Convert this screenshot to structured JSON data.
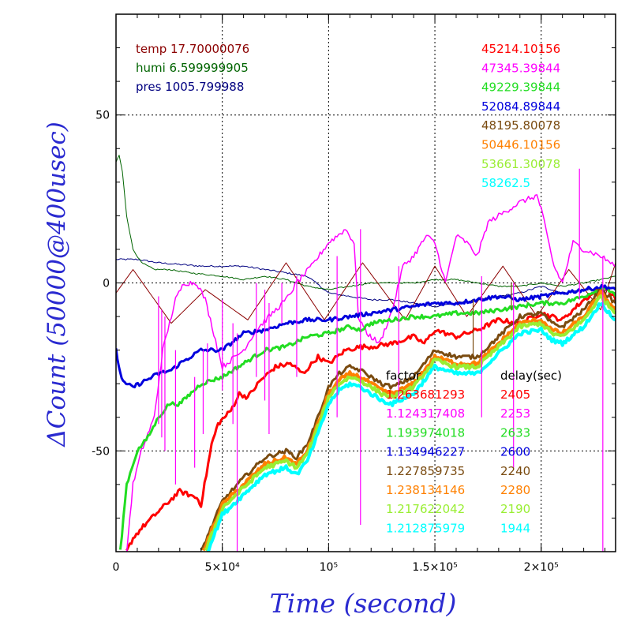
{
  "chart_data": {
    "type": "line",
    "title": "",
    "xlabel": "Time (second)",
    "ylabel": "ΔCount (50000@400usec)",
    "xlim": [
      0,
      235000
    ],
    "ylim": [
      -80,
      80
    ],
    "grid": true,
    "x_ticks": [
      {
        "value": 0,
        "label": "0"
      },
      {
        "value": 50000,
        "label": "5×10⁴"
      },
      {
        "value": 100000,
        "label": "10⁵"
      },
      {
        "value": 150000,
        "label": "1.5×10⁵"
      },
      {
        "value": 200000,
        "label": "2×10⁵"
      }
    ],
    "y_ticks": [
      {
        "value": 50,
        "label": "50"
      },
      {
        "value": 0,
        "label": "0"
      },
      {
        "value": -50,
        "label": "-50"
      }
    ],
    "env_legend": [
      {
        "label": "temp 17.70000076",
        "color": "#8b0000"
      },
      {
        "label": "humi 6.599999905",
        "color": "#006400"
      },
      {
        "label": "pres 1005.799988",
        "color": "#000080"
      }
    ],
    "value_legend": [
      {
        "label": "45214.10156",
        "color": "#ff0000"
      },
      {
        "label": "47345.39844",
        "color": "#ff00ff"
      },
      {
        "label": "49229.39844",
        "color": "#22dd22"
      },
      {
        "label": "52084.89844",
        "color": "#0000dd"
      },
      {
        "label": "48195.80078",
        "color": "#7a4b10"
      },
      {
        "label": "50446.10156",
        "color": "#ff8000"
      },
      {
        "label": "53661.30078",
        "color": "#99ee33"
      },
      {
        "label": "58262.5",
        "color": "#00ffff"
      }
    ],
    "factor_header": "factor",
    "delay_header": "delay(sec)",
    "factor_rows": [
      {
        "factor": "1.263681293",
        "delay": "2405",
        "color": "#ff0000"
      },
      {
        "factor": "1.124317408",
        "delay": "2253",
        "color": "#ff00ff"
      },
      {
        "factor": "1.193974018",
        "delay": "2633",
        "color": "#22dd22"
      },
      {
        "factor": "1.134946227",
        "delay": "2600",
        "color": "#0000dd"
      },
      {
        "factor": "1.227859735",
        "delay": "2240",
        "color": "#7a4b10"
      },
      {
        "factor": "1.238134146",
        "delay": "2280",
        "color": "#ff8000"
      },
      {
        "factor": "1.217622042",
        "delay": "2190",
        "color": "#99ee33"
      },
      {
        "factor": "1.212875979",
        "delay": "1944",
        "color": "#00ffff"
      }
    ],
    "series": [
      {
        "label_ref": "pres",
        "color": "#000080",
        "width": 1,
        "noise": 0.25,
        "x": [
          0,
          10000,
          20000,
          40000,
          60000,
          80000,
          90000,
          100000,
          110000,
          120000,
          130000,
          140000,
          150000,
          160000,
          170000,
          180000,
          190000,
          200000,
          210000,
          220000,
          228000,
          235000
        ],
        "y": [
          7,
          7,
          6,
          5,
          5,
          3,
          2,
          -3,
          -4,
          -5,
          -5,
          -6,
          -7,
          -6,
          -5,
          -4,
          -3,
          -1,
          -3,
          -2,
          -2,
          -3
        ]
      },
      {
        "label_ref": "humi",
        "color": "#006400",
        "width": 1,
        "noise": 0.2,
        "x": [
          0,
          1500,
          3000,
          5000,
          8000,
          12000,
          18000,
          25000,
          35000,
          50000,
          60000,
          70000,
          80000,
          90000,
          100000,
          110000,
          120000,
          130000,
          140000,
          150000,
          160000,
          170000,
          180000,
          190000,
          200000,
          210000,
          220000,
          228000,
          235000
        ],
        "y": [
          36,
          38,
          33,
          20,
          10,
          6,
          4,
          4,
          3,
          2,
          1,
          2,
          1,
          -1,
          -2,
          -1,
          0,
          0,
          0,
          1,
          1,
          0,
          -1,
          -1,
          0,
          -1,
          0,
          1,
          2
        ]
      },
      {
        "label_ref": "temp",
        "color": "#8b0000",
        "width": 1,
        "noise": 0,
        "x": [
          0,
          8000,
          26000,
          42000,
          62000,
          80000,
          98000,
          116000,
          136000,
          150000,
          165000,
          182000,
          198000,
          213000,
          228000,
          235000
        ],
        "y": [
          -3,
          4,
          -12,
          -2,
          -11,
          6,
          -11,
          6,
          -11,
          5,
          -10,
          5,
          -10,
          4,
          -8,
          6
        ]
      },
      {
        "label_ref": "45214.10156",
        "color": "#ff0000",
        "width": 3,
        "noise": 0.7,
        "x": [
          5000,
          8000,
          12000,
          20000,
          30000,
          38000,
          40000,
          45000,
          48000,
          54000,
          58000,
          62000,
          68000,
          75000,
          82000,
          88000,
          95000,
          100000,
          108000,
          115000,
          120000,
          130000,
          140000,
          145000,
          150000,
          155000,
          160000,
          170000,
          180000,
          190000,
          200000,
          210000,
          220000,
          230000,
          235000
        ],
        "y": [
          -80,
          -76,
          -73,
          -68,
          -62,
          -64,
          -66,
          -48,
          -42,
          -38,
          -33,
          -34,
          -29,
          -25,
          -24,
          -27,
          -22,
          -24,
          -20,
          -19,
          -19,
          -18,
          -16,
          -18,
          -14,
          -15,
          -16,
          -14,
          -11,
          -12,
          -9,
          -11,
          -5,
          -1,
          -5
        ]
      },
      {
        "label_ref": "47345.39844",
        "color": "#ff00ff",
        "width": 1.5,
        "noise": 0.8,
        "x": [
          5000,
          8000,
          12000,
          18000,
          22000,
          26000,
          28000,
          32000,
          38000,
          42000,
          46000,
          50000,
          56000,
          60000,
          66000,
          72000,
          80000,
          85000,
          92000,
          100000,
          108000,
          112000,
          114000,
          118000,
          124000,
          130000,
          135000,
          140000,
          146000,
          150000,
          155000,
          160000,
          165000,
          170000,
          175000,
          180000,
          190000,
          198000,
          200000,
          206000,
          210000,
          215000,
          220000,
          228000,
          235000
        ],
        "y": [
          -80,
          -60,
          -50,
          -40,
          -20,
          -10,
          -5,
          0,
          0,
          -5,
          -15,
          -25,
          -22,
          -20,
          -14,
          -10,
          -5,
          0,
          5,
          12,
          16,
          12,
          -10,
          -15,
          -18,
          -8,
          5,
          8,
          14,
          12,
          0,
          14,
          12,
          8,
          18,
          20,
          24,
          26,
          22,
          5,
          0,
          12,
          10,
          8,
          5
        ]
      },
      {
        "label_ref": "49229.39844",
        "color": "#22dd22",
        "width": 3,
        "noise": 0.6,
        "x": [
          2000,
          5000,
          10000,
          15000,
          20000,
          25000,
          30000,
          40000,
          50000,
          60000,
          70000,
          80000,
          90000,
          100000,
          110000,
          115000,
          120000,
          130000,
          140000,
          150000,
          160000,
          170000,
          180000,
          190000,
          200000,
          210000,
          220000,
          230000,
          235000
        ],
        "y": [
          -80,
          -60,
          -50,
          -46,
          -40,
          -36,
          -36,
          -30,
          -28,
          -24,
          -20,
          -19,
          -16,
          -15,
          -13,
          -14,
          -12,
          -11,
          -10,
          -10,
          -9,
          -9,
          -8,
          -7,
          -6,
          -6,
          -4,
          -1,
          -4
        ]
      },
      {
        "label_ref": "52084.89844",
        "color": "#0000dd",
        "width": 3,
        "noise": 0.6,
        "x": [
          0,
          2000,
          4000,
          8000,
          14000,
          20000,
          26000,
          30000,
          40000,
          50000,
          60000,
          70000,
          80000,
          90000,
          100000,
          110000,
          120000,
          130000,
          140000,
          150000,
          160000,
          170000,
          180000,
          190000,
          200000,
          210000,
          220000,
          230000,
          235000
        ],
        "y": [
          -20,
          -27,
          -30,
          -31,
          -29,
          -27,
          -26,
          -24,
          -20,
          -20,
          -15,
          -14,
          -12,
          -11,
          -11,
          -10,
          -9,
          -8,
          -7,
          -6,
          -6,
          -5,
          -4,
          -5,
          -4,
          -3,
          -2,
          -1,
          -2
        ]
      },
      {
        "label_ref": "48195.80078",
        "color": "#7a4b10",
        "width": 3,
        "noise": 0.6,
        "x": [
          40000,
          50000,
          60000,
          70000,
          80000,
          85000,
          90000,
          95000,
          100000,
          105000,
          110000,
          115000,
          120000,
          125000,
          130000,
          140000,
          150000,
          160000,
          170000,
          180000,
          190000,
          200000,
          205000,
          210000,
          220000,
          228000,
          235000
        ],
        "y": [
          -80,
          -65,
          -58,
          -52,
          -50,
          -52,
          -48,
          -40,
          -31,
          -27,
          -25,
          -26,
          -28,
          -30,
          -31,
          -28,
          -20,
          -22,
          -22,
          -16,
          -10,
          -9,
          -12,
          -13,
          -8,
          -2,
          -6
        ]
      },
      {
        "label_ref": "50446.10156",
        "color": "#ff8000",
        "width": 4,
        "noise": 0.6,
        "x": [
          41000,
          50000,
          60000,
          70000,
          80000,
          85000,
          90000,
          95000,
          100000,
          105000,
          110000,
          115000,
          120000,
          125000,
          130000,
          140000,
          150000,
          160000,
          170000,
          180000,
          190000,
          200000,
          205000,
          210000,
          220000,
          228000,
          235000
        ],
        "y": [
          -80,
          -66,
          -60,
          -54,
          -52,
          -54,
          -50,
          -42,
          -33,
          -29,
          -27,
          -28,
          -30,
          -32,
          -33,
          -30,
          -22,
          -24,
          -24,
          -18,
          -12,
          -11,
          -14,
          -15,
          -10,
          -3,
          -8
        ]
      },
      {
        "label_ref": "53661.30078",
        "color": "#99ee33",
        "width": 4,
        "noise": 0.6,
        "x": [
          42000,
          50000,
          60000,
          70000,
          80000,
          85000,
          90000,
          95000,
          100000,
          105000,
          110000,
          115000,
          120000,
          125000,
          130000,
          140000,
          150000,
          160000,
          170000,
          180000,
          190000,
          200000,
          205000,
          210000,
          220000,
          228000,
          235000
        ],
        "y": [
          -80,
          -67,
          -61,
          -55,
          -53,
          -55,
          -51,
          -43,
          -34,
          -30,
          -28,
          -29,
          -31,
          -33,
          -34,
          -31,
          -23,
          -25,
          -25,
          -19,
          -13,
          -12,
          -15,
          -16,
          -11,
          -4,
          -9
        ]
      },
      {
        "label_ref": "58262.5",
        "color": "#00ffff",
        "width": 4,
        "noise": 0.6,
        "x": [
          43000,
          50000,
          60000,
          70000,
          80000,
          85000,
          90000,
          95000,
          100000,
          105000,
          110000,
          115000,
          120000,
          125000,
          130000,
          140000,
          150000,
          160000,
          170000,
          180000,
          190000,
          200000,
          205000,
          210000,
          220000,
          228000,
          235000
        ],
        "y": [
          -80,
          -69,
          -63,
          -57,
          -55,
          -57,
          -53,
          -45,
          -36,
          -32,
          -30,
          -31,
          -33,
          -35,
          -36,
          -33,
          -25,
          -27,
          -27,
          -21,
          -15,
          -14,
          -17,
          -18,
          -13,
          -6,
          -11
        ]
      }
    ],
    "spikes": [
      {
        "color": "#ff00ff",
        "pairs": [
          [
            20000,
            -42,
            -4
          ],
          [
            21500,
            -46,
            -8
          ],
          [
            23000,
            -50,
            -10
          ],
          [
            28000,
            -60,
            -20
          ],
          [
            37000,
            -55,
            -28
          ],
          [
            41000,
            -45,
            -20
          ],
          [
            43000,
            -30,
            -18
          ],
          [
            50000,
            -32,
            -5
          ],
          [
            55000,
            -42,
            -12
          ],
          [
            57000,
            -80,
            -15
          ],
          [
            66000,
            -28,
            0
          ],
          [
            70000,
            -35,
            -2
          ],
          [
            72000,
            -45,
            -6
          ],
          [
            78000,
            -12,
            0
          ],
          [
            85000,
            -28,
            2
          ],
          [
            104000,
            -40,
            8
          ],
          [
            115000,
            -72,
            16
          ],
          [
            133000,
            -35,
            5
          ],
          [
            172000,
            -40,
            2
          ],
          [
            187000,
            -55,
            0
          ],
          [
            229000,
            -80,
            8
          ],
          [
            218000,
            -5,
            34
          ]
        ]
      },
      {
        "color": "#7a4b10",
        "pairs": [
          [
            168000,
            -22,
            -5
          ],
          [
            186000,
            -8,
            0
          ]
        ]
      }
    ]
  }
}
